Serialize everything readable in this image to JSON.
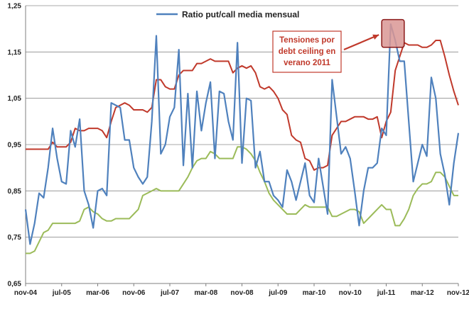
{
  "chart_data": {
    "type": "line",
    "ylim": [
      0.65,
      1.25
    ],
    "yticks": [
      0.65,
      0.75,
      0.85,
      0.95,
      1.05,
      1.15,
      1.25
    ],
    "ytick_labels": [
      "0,65",
      "0,75",
      "0,85",
      "0,95",
      "1,05",
      "1,15",
      "1,25"
    ],
    "x_months": [
      "nov-04",
      "dic-04",
      "ene-05",
      "feb-05",
      "mar-05",
      "abr-05",
      "may-05",
      "jun-05",
      "jul-05",
      "ago-05",
      "sep-05",
      "oct-05",
      "nov-05",
      "dic-05",
      "ene-06",
      "feb-06",
      "mar-06",
      "abr-06",
      "may-06",
      "jun-06",
      "jul-06",
      "ago-06",
      "sep-06",
      "oct-06",
      "nov-06",
      "dic-06",
      "ene-07",
      "feb-07",
      "mar-07",
      "abr-07",
      "may-07",
      "jun-07",
      "jul-07",
      "ago-07",
      "sep-07",
      "oct-07",
      "nov-07",
      "dic-07",
      "ene-08",
      "feb-08",
      "mar-08",
      "abr-08",
      "may-08",
      "jun-08",
      "jul-08",
      "ago-08",
      "sep-08",
      "oct-08",
      "nov-08",
      "dic-08",
      "ene-09",
      "feb-09",
      "mar-09",
      "abr-09",
      "may-09",
      "jun-09",
      "jul-09",
      "ago-09",
      "sep-09",
      "oct-09",
      "nov-09",
      "dic-09",
      "ene-10",
      "feb-10",
      "mar-10",
      "abr-10",
      "may-10",
      "jun-10",
      "jul-10",
      "ago-10",
      "sep-10",
      "oct-10",
      "nov-10",
      "dic-10",
      "ene-11",
      "feb-11",
      "mar-11",
      "abr-11",
      "may-11",
      "jun-11",
      "jul-11",
      "ago-11",
      "sep-11",
      "oct-11",
      "nov-11",
      "dic-11",
      "ene-12",
      "feb-12",
      "mar-12",
      "abr-12",
      "may-12",
      "jun-12",
      "jul-12",
      "ago-12",
      "sep-12",
      "oct-12",
      "nov-12"
    ],
    "x_tick_labels": [
      "nov-04",
      "jul-05",
      "mar-06",
      "nov-06",
      "jul-07",
      "mar-08",
      "nov-08",
      "jul-09",
      "mar-10",
      "nov-10",
      "jul-11",
      "mar-12",
      "nov-12"
    ],
    "x_tick_indices": [
      0,
      8,
      16,
      24,
      32,
      40,
      48,
      56,
      64,
      72,
      80,
      88,
      96
    ],
    "series": [
      {
        "name": "Ratio put/call  media mensual",
        "color": "#4f81bd",
        "values": [
          0.81,
          0.735,
          0.78,
          0.845,
          0.835,
          0.9,
          0.985,
          0.92,
          0.87,
          0.865,
          0.98,
          0.945,
          1.005,
          0.85,
          0.82,
          0.77,
          0.85,
          0.855,
          0.84,
          1.04,
          1.035,
          1.03,
          0.96,
          0.96,
          0.9,
          0.88,
          0.865,
          0.88,
          1.0,
          1.185,
          0.93,
          0.95,
          1.01,
          1.03,
          1.155,
          0.905,
          1.06,
          0.9,
          1.065,
          0.98,
          1.04,
          1.085,
          0.92,
          1.065,
          1.06,
          1.0,
          0.96,
          1.17,
          0.91,
          1.05,
          1.045,
          0.9,
          0.935,
          0.87,
          0.87,
          0.84,
          0.83,
          0.815,
          0.895,
          0.87,
          0.83,
          0.87,
          0.91,
          0.84,
          0.825,
          0.92,
          0.86,
          0.8,
          1.09,
          1.01,
          0.93,
          0.945,
          0.92,
          0.85,
          0.775,
          0.85,
          0.9,
          0.9,
          0.91,
          0.985,
          0.97,
          1.21,
          1.175,
          1.13,
          1.13,
          1.0,
          0.87,
          0.91,
          0.95,
          0.925,
          1.095,
          1.05,
          0.93,
          0.885,
          0.82,
          0.91,
          0.975
        ]
      },
      {
        "name": "Tensiones",
        "color": "#c0392b",
        "values": [
          0.94,
          0.94,
          0.94,
          0.94,
          0.94,
          0.94,
          0.955,
          0.945,
          0.945,
          0.945,
          0.955,
          0.985,
          0.98,
          0.98,
          0.985,
          0.985,
          0.985,
          0.98,
          0.965,
          1.0,
          1.03,
          1.035,
          1.04,
          1.035,
          1.025,
          1.025,
          1.025,
          1.02,
          1.03,
          1.09,
          1.09,
          1.075,
          1.07,
          1.07,
          1.1,
          1.11,
          1.11,
          1.11,
          1.125,
          1.125,
          1.13,
          1.135,
          1.13,
          1.13,
          1.13,
          1.13,
          1.105,
          1.115,
          1.12,
          1.115,
          1.12,
          1.105,
          1.075,
          1.07,
          1.075,
          1.065,
          1.05,
          1.025,
          1.015,
          0.97,
          0.96,
          0.955,
          0.92,
          0.915,
          0.895,
          0.9,
          0.9,
          0.905,
          0.97,
          0.985,
          1.0,
          1.0,
          1.005,
          1.01,
          1.01,
          1.01,
          1.005,
          1.005,
          1.01,
          0.965,
          1.0,
          1.02,
          1.11,
          1.14,
          1.17,
          1.165,
          1.165,
          1.165,
          1.16,
          1.16,
          1.165,
          1.175,
          1.175,
          1.14,
          1.1,
          1.065,
          1.035
        ]
      },
      {
        "name": "",
        "color": "#9bbb59",
        "values": [
          0.715,
          0.715,
          0.72,
          0.74,
          0.76,
          0.765,
          0.78,
          0.78,
          0.78,
          0.78,
          0.78,
          0.78,
          0.785,
          0.81,
          0.815,
          0.805,
          0.8,
          0.79,
          0.785,
          0.785,
          0.79,
          0.79,
          0.79,
          0.79,
          0.8,
          0.81,
          0.84,
          0.845,
          0.85,
          0.855,
          0.85,
          0.85,
          0.85,
          0.85,
          0.85,
          0.865,
          0.88,
          0.9,
          0.915,
          0.92,
          0.92,
          0.935,
          0.93,
          0.92,
          0.92,
          0.92,
          0.92,
          0.945,
          0.945,
          0.94,
          0.93,
          0.915,
          0.89,
          0.87,
          0.845,
          0.83,
          0.82,
          0.81,
          0.8,
          0.8,
          0.8,
          0.81,
          0.82,
          0.815,
          0.815,
          0.815,
          0.815,
          0.815,
          0.795,
          0.795,
          0.8,
          0.805,
          0.81,
          0.81,
          0.805,
          0.78,
          0.79,
          0.8,
          0.81,
          0.82,
          0.81,
          0.81,
          0.775,
          0.775,
          0.79,
          0.81,
          0.84,
          0.855,
          0.865,
          0.865,
          0.87,
          0.89,
          0.89,
          0.88,
          0.86,
          0.84,
          0.84
        ]
      }
    ],
    "legend": {
      "label": "Ratio put/call  media mensual",
      "position": "top-center"
    },
    "annotation": {
      "lines": [
        "Tensiones por",
        "debt ceiling en",
        "verano 2011"
      ],
      "color": "#c0392b"
    },
    "highlight_box": {
      "x_start_index": 79,
      "x_end_index": 84,
      "y_from": 1.16,
      "y_to": 1.22,
      "fill": "#d99694",
      "stroke": "#8b1a1a"
    },
    "grid": "horizontal"
  }
}
